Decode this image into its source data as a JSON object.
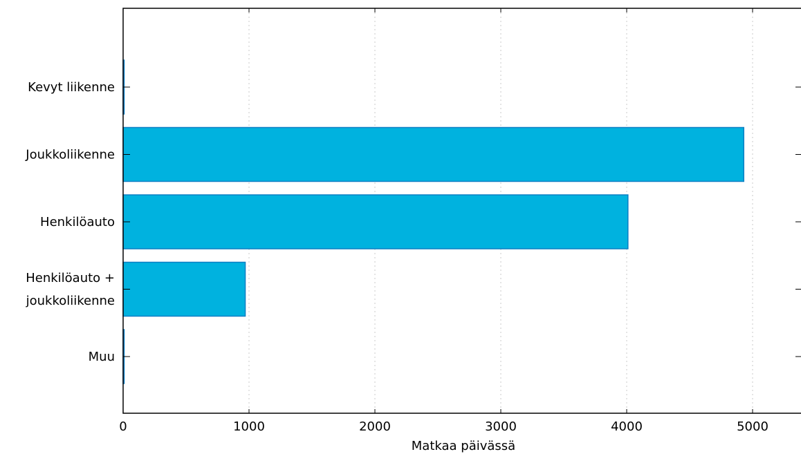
{
  "chart_data": {
    "type": "bar",
    "orientation": "horizontal",
    "categories": [
      [
        "Kevyt liikenne"
      ],
      [
        "Joukkoliikenne"
      ],
      [
        "Henkilöauto"
      ],
      [
        "Henkilöauto +",
        "joukkoliikenne"
      ],
      [
        "Muu"
      ]
    ],
    "values": [
      8,
      4930,
      4010,
      970,
      8
    ],
    "xlabel": "Matkaa päivässä",
    "xlim": [
      0,
      5400
    ],
    "xticks": [
      0,
      1000,
      2000,
      3000,
      4000,
      5000
    ],
    "xtick_labels": [
      "0",
      "1000",
      "2000",
      "3000",
      "4000",
      "5000"
    ],
    "grid": "vertical-dotted",
    "legend": "none",
    "colors": {
      "bar_fill": "#00b2df",
      "bar_edge": "#0a7fc4",
      "grid": "#c8c8c8",
      "axis": "#000000"
    }
  }
}
